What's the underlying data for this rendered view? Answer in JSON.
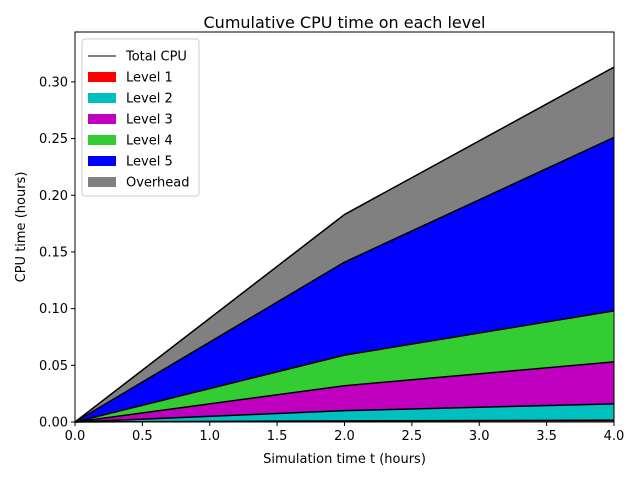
{
  "chart_data": {
    "type": "area",
    "stacked": true,
    "title": "Cumulative CPU time on each level",
    "xlabel": "Simulation time t (hours)",
    "ylabel": "CPU time (hours)",
    "xlim": [
      0.0,
      4.0
    ],
    "ylim": [
      0.0,
      0.344
    ],
    "xticks": [
      "0.0",
      "0.5",
      "1.0",
      "1.5",
      "2.0",
      "2.5",
      "3.0",
      "3.5",
      "4.0"
    ],
    "yticks": [
      "0.00",
      "0.05",
      "0.10",
      "0.15",
      "0.20",
      "0.25",
      "0.30"
    ],
    "x": [
      0.0,
      2.0,
      4.0
    ],
    "series": [
      {
        "name": "Level 1",
        "color": "#ff0000",
        "values": [
          0.0,
          0.001,
          0.0015
        ]
      },
      {
        "name": "Level 2",
        "color": "#00bfbf",
        "values": [
          0.0,
          0.009,
          0.0145
        ]
      },
      {
        "name": "Level 3",
        "color": "#bf00bf",
        "values": [
          0.0,
          0.022,
          0.037
        ]
      },
      {
        "name": "Level 4",
        "color": "#33cc33",
        "values": [
          0.0,
          0.027,
          0.045
        ]
      },
      {
        "name": "Level 5",
        "color": "#0000ff",
        "values": [
          0.0,
          0.082,
          0.153
        ]
      },
      {
        "name": "Overhead",
        "color": "#808080",
        "values": [
          0.0,
          0.042,
          0.062
        ]
      }
    ],
    "total": {
      "name": "Total CPU",
      "color": "#000000",
      "values": [
        0.0,
        0.183,
        0.313
      ]
    },
    "grid": false,
    "legend_position": "upper-left"
  }
}
